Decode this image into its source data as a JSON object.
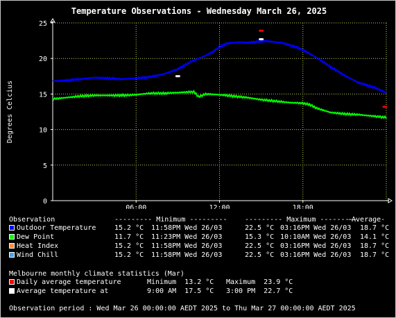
{
  "chart_data": {
    "type": "line",
    "title": "Temperature Observations - Wednesday March 26, 2025",
    "ylabel": "Degrees Celcius",
    "xlabel": "",
    "ylim": [
      0,
      25
    ],
    "yticks": [
      "0",
      "5",
      "10",
      "15",
      "20",
      "25"
    ],
    "xlim": [
      0,
      24
    ],
    "xticks": [
      {
        "x": 6,
        "label": "06:00"
      },
      {
        "x": 12,
        "label": "12:00"
      },
      {
        "x": 18,
        "label": "18:00"
      }
    ],
    "grid": true,
    "series": [
      {
        "name": "Outdoor Temperature",
        "color": "#0000ff",
        "x": [
          0,
          1,
          2,
          3,
          4,
          5,
          6,
          7,
          8,
          9,
          10,
          11,
          11.5,
          12,
          12.5,
          13,
          13.5,
          14,
          14.5,
          15,
          15.27,
          15.5,
          16,
          16.5,
          17,
          17.5,
          18,
          19,
          20,
          21,
          22,
          23,
          24
        ],
        "values": [
          16.8,
          16.9,
          17.1,
          17.3,
          17.2,
          17.1,
          17.2,
          17.4,
          17.8,
          18.5,
          19.6,
          20.4,
          20.9,
          21.6,
          22.1,
          22.2,
          22.3,
          22.2,
          22.3,
          22.4,
          22.5,
          22.4,
          22.3,
          22.2,
          21.9,
          21.6,
          21.2,
          20.1,
          18.8,
          17.6,
          16.6,
          16.0,
          15.2
        ]
      },
      {
        "name": "Dew Point",
        "color": "#00ff00",
        "x": [
          0,
          1,
          2,
          3,
          4,
          5,
          6,
          7,
          8,
          9,
          10,
          10.18,
          10.5,
          11,
          12,
          13,
          14,
          15,
          16,
          17,
          18,
          18.5,
          19,
          20,
          21,
          22,
          23,
          24
        ],
        "values": [
          14.3,
          14.5,
          14.7,
          14.8,
          14.8,
          14.8,
          14.9,
          15.1,
          15.1,
          15.2,
          15.3,
          15.3,
          14.6,
          15.0,
          14.9,
          14.7,
          14.5,
          14.2,
          14.0,
          13.8,
          13.7,
          13.5,
          13.0,
          12.4,
          12.2,
          12.1,
          11.9,
          11.7
        ]
      },
      {
        "name": "Heat Index",
        "color": "#ff8c3c",
        "x": [],
        "values": []
      },
      {
        "name": "Wind Chill",
        "color": "#46a0e6",
        "x": [],
        "values": []
      }
    ],
    "markers": [
      {
        "name": "Daily average temperature",
        "color": "#ff0000",
        "points": [
          {
            "x": 15,
            "y": 23.9
          },
          {
            "x": 23.9,
            "y": 13.2
          }
        ]
      },
      {
        "name": "Average temperature at",
        "color": "#ffffff",
        "points": [
          {
            "x": 9,
            "y": 17.5
          },
          {
            "x": 15,
            "y": 22.7
          }
        ]
      }
    ]
  },
  "legend": {
    "headers": {
      "observation": "Observation",
      "minimum": "--------- Minimum ---------",
      "maximum": "--------- Maximum ---------",
      "average": "-Average-"
    },
    "rows": [
      {
        "label": "Outdoor Temperature",
        "color": "#0000ff",
        "min": "15.2 °C",
        "min_time": "11:58PM Wed 26/03",
        "max": "22.5 °C",
        "max_time": "03:16PM Wed 26/03",
        "avg": "18.7 °C"
      },
      {
        "label": "Dew Point",
        "color": "#00ff00",
        "min": "11.7 °C",
        "min_time": "11:23PM Wed 26/03",
        "max": "15.3 °C",
        "max_time": "10:10AM Wed 26/03",
        "avg": "14.1 °C"
      },
      {
        "label": "Heat Index",
        "color": "#ff8c3c",
        "min": "15.2 °C",
        "min_time": "11:58PM Wed 26/03",
        "max": "22.5 °C",
        "max_time": "03:16PM Wed 26/03",
        "avg": "18.7 °C"
      },
      {
        "label": "Wind Chill",
        "color": "#46a0e6",
        "min": "15.2 °C",
        "min_time": "11:58PM Wed 26/03",
        "max": "22.5 °C",
        "max_time": "03:16PM Wed 26/03",
        "avg": "18.7 °C"
      }
    ]
  },
  "climate": {
    "heading": "Melbourne monthly climate statistics (Mar)",
    "rows": [
      {
        "label": "Daily average temperature",
        "color": "#ff0000",
        "a": "Minimum  13.2 °C",
        "b": "Maximum  23.9 °C"
      },
      {
        "label": "Average temperature at",
        "color": "#ffffff",
        "a": "9:00 AM  17.5 °C",
        "b": "3:00 PM  22.7 °C"
      }
    ]
  },
  "period": "Observation period : Wed Mar 26 00:00:00 AEDT 2025 to Thu Mar 27 00:00:00 AEDT 2025"
}
